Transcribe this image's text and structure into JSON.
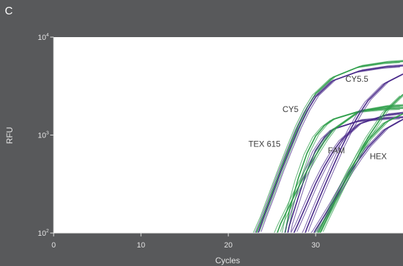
{
  "panel_label": "C",
  "colors": {
    "background": "#58595b",
    "plot_area": "#ffffff",
    "green": "#2e9e4a",
    "purple": "#4a2a8a",
    "text": "#e6e6e6"
  },
  "chart_data": {
    "type": "line",
    "xlabel": "Cycles",
    "ylabel": "RFU",
    "xlim": [
      0,
      40
    ],
    "ylim": [
      100,
      10000
    ],
    "yscale": "log",
    "xticks": [
      {
        "value": 0,
        "label": "0"
      },
      {
        "value": 10,
        "label": "10"
      },
      {
        "value": 20,
        "label": "20"
      },
      {
        "value": 30,
        "label": "30"
      }
    ],
    "yticks": [
      {
        "value": 100,
        "base": "10",
        "exp": "2"
      },
      {
        "value": 1000,
        "base": "10",
        "exp": "3"
      },
      {
        "value": 10000,
        "base": "10",
        "exp": "4"
      }
    ],
    "grid": false,
    "series": [
      {
        "name": "CY5",
        "color": "#2e9e4a",
        "x": [
          23.2,
          24,
          25,
          26,
          27,
          28,
          29,
          30,
          32,
          35,
          38,
          40
        ],
        "y": [
          100,
          150,
          260,
          450,
          760,
          1250,
          1900,
          2650,
          3900,
          5000,
          5500,
          5650
        ]
      },
      {
        "name": "CY5",
        "color": "#4a2a8a",
        "x": [
          23.4,
          24,
          25,
          26,
          27,
          28,
          29,
          30,
          32,
          35,
          38,
          40
        ],
        "y": [
          100,
          140,
          240,
          420,
          700,
          1150,
          1750,
          2450,
          3600,
          4500,
          4950,
          5100
        ]
      },
      {
        "name": "TEX 615",
        "color": "#2e9e4a",
        "x": [
          26.5,
          27,
          28,
          29,
          30,
          31,
          32,
          35,
          38,
          40
        ],
        "y": [
          100,
          170,
          360,
          650,
          980,
          1250,
          1450,
          1750,
          1850,
          1880
        ]
      },
      {
        "name": "TEX 615",
        "color": "#4a2a8a",
        "x": [
          26.8,
          27,
          28,
          29,
          30,
          31,
          32,
          35,
          38,
          40
        ],
        "y": [
          100,
          120,
          230,
          430,
          700,
          950,
          1150,
          1400,
          1480,
          1510
        ]
      },
      {
        "name": "FAM",
        "color": "#2e9e4a",
        "x": [
          25.6,
          26,
          27,
          28,
          29,
          30,
          31,
          32,
          35,
          38,
          40
        ],
        "y": [
          100,
          125,
          190,
          290,
          430,
          620,
          860,
          1130,
          1750,
          1950,
          2000
        ]
      },
      {
        "name": "FAM",
        "color": "#4a2a8a",
        "x": [
          27.5,
          28,
          29,
          30,
          31,
          32,
          33,
          35,
          38,
          40
        ],
        "y": [
          100,
          125,
          200,
          320,
          480,
          680,
          900,
          1300,
          1600,
          1680
        ]
      },
      {
        "name": "HEX",
        "color": "#2e9e4a",
        "x": [
          30.3,
          31,
          32,
          33,
          34,
          35,
          36,
          38,
          40
        ],
        "y": [
          100,
          135,
          200,
          300,
          450,
          640,
          880,
          1350,
          1650
        ]
      },
      {
        "name": "HEX",
        "color": "#4a2a8a",
        "x": [
          29.8,
          30,
          31,
          32,
          33,
          34,
          35,
          36,
          38,
          40
        ],
        "y": [
          100,
          108,
          150,
          210,
          300,
          420,
          570,
          750,
          1150,
          1450
        ]
      },
      {
        "name": "CY5.5",
        "color": "#4a2a8a",
        "x": [
          28.8,
          29,
          30,
          31,
          32,
          33,
          34,
          35,
          36,
          38,
          40
        ],
        "y": [
          100,
          112,
          185,
          300,
          480,
          760,
          1150,
          1650,
          2250,
          3400,
          4200
        ]
      },
      {
        "name": "CY5.5",
        "color": "#2e9e4a",
        "x": [
          30.5,
          31,
          32,
          33,
          34,
          35,
          36,
          38,
          40
        ],
        "y": [
          100,
          125,
          190,
          290,
          430,
          650,
          950,
          1750,
          2600
        ]
      }
    ],
    "annotations": [
      {
        "text": "CY5.5",
        "x": 33.4,
        "y": 3500
      },
      {
        "text": "CY5",
        "x": 26.2,
        "y": 1720
      },
      {
        "text": "TEX 615",
        "x": 22.3,
        "y": 760
      },
      {
        "text": "FAM",
        "x": 31.4,
        "y": 650
      },
      {
        "text": "HEX",
        "x": 36.2,
        "y": 570
      }
    ]
  }
}
